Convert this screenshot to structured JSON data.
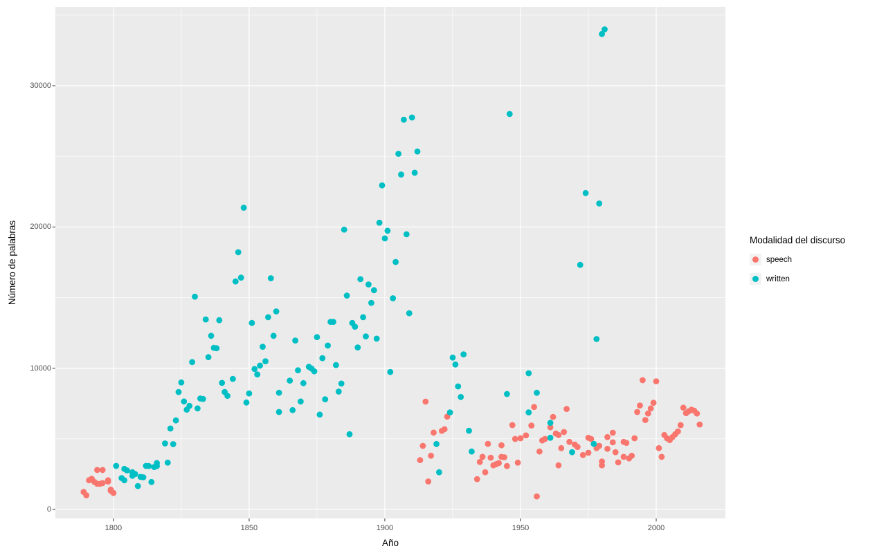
{
  "chart_data": {
    "type": "scatter",
    "title": "",
    "xlabel": "Año",
    "ylabel": "Número de palabras",
    "legend_title": "Modalidad del discurso",
    "legend_position": "right",
    "grid": true,
    "panel_bg": "#EBEBEB",
    "grid_color": "#FFFFFF",
    "tick_color": "#333333",
    "tick_label_color": "#4D4D4D",
    "xlim": [
      1778.6,
      2025.5
    ],
    "ylim": [
      -640,
      35580
    ],
    "x_ticks": [
      1800,
      1850,
      1900,
      1950,
      2000
    ],
    "x_tick_labels": [
      "1800",
      "1850",
      "1900",
      "1950",
      "2000"
    ],
    "x_minor_ticks": [
      1825,
      1875,
      1925,
      1975
    ],
    "y_ticks": [
      0,
      10000,
      20000,
      30000
    ],
    "y_tick_labels": [
      "0",
      "10000",
      "20000",
      "30000"
    ],
    "y_minor_ticks": [
      5000,
      15000,
      25000,
      35000
    ],
    "series": [
      {
        "name": "speech",
        "color": "#F8766D",
        "points": [
          [
            1789,
            1240
          ],
          [
            1790,
            1000
          ],
          [
            1791,
            2060
          ],
          [
            1792,
            2170
          ],
          [
            1793,
            1940
          ],
          [
            1794,
            2790
          ],
          [
            1794,
            1810
          ],
          [
            1795,
            1810
          ],
          [
            1796,
            2790
          ],
          [
            1796,
            1860
          ],
          [
            1798,
            1970
          ],
          [
            1798,
            2060
          ],
          [
            1799,
            1400
          ],
          [
            1799,
            1320
          ],
          [
            1800,
            1160
          ],
          [
            1913,
            3490
          ],
          [
            1914,
            4500
          ],
          [
            1915,
            7630
          ],
          [
            1916,
            1980
          ],
          [
            1917,
            3800
          ],
          [
            1918,
            5440
          ],
          [
            1921,
            5560
          ],
          [
            1922,
            5680
          ],
          [
            1923,
            6570
          ],
          [
            1934,
            2140
          ],
          [
            1935,
            3360
          ],
          [
            1936,
            3720
          ],
          [
            1937,
            2630
          ],
          [
            1938,
            4640
          ],
          [
            1939,
            3660
          ],
          [
            1940,
            3120
          ],
          [
            1941,
            3200
          ],
          [
            1942,
            3280
          ],
          [
            1943,
            3720
          ],
          [
            1943,
            4540
          ],
          [
            1944,
            3690
          ],
          [
            1945,
            3070
          ],
          [
            1947,
            5970
          ],
          [
            1948,
            4990
          ],
          [
            1949,
            3310
          ],
          [
            1950,
            5040
          ],
          [
            1952,
            5240
          ],
          [
            1954,
            5940
          ],
          [
            1955,
            7250
          ],
          [
            1956,
            920
          ],
          [
            1957,
            4100
          ],
          [
            1958,
            4880
          ],
          [
            1959,
            4990
          ],
          [
            1961,
            5810
          ],
          [
            1962,
            6550
          ],
          [
            1963,
            5370
          ],
          [
            1964,
            5270
          ],
          [
            1964,
            3120
          ],
          [
            1965,
            4340
          ],
          [
            1966,
            5480
          ],
          [
            1967,
            7110
          ],
          [
            1968,
            4780
          ],
          [
            1970,
            4590
          ],
          [
            1971,
            4420
          ],
          [
            1973,
            3850
          ],
          [
            1975,
            5070
          ],
          [
            1975,
            4010
          ],
          [
            1976,
            4990
          ],
          [
            1978,
            4340
          ],
          [
            1979,
            4500
          ],
          [
            1980,
            3390
          ],
          [
            1980,
            3120
          ],
          [
            1982,
            4290
          ],
          [
            1982,
            5120
          ],
          [
            1984,
            5430
          ],
          [
            1984,
            4750
          ],
          [
            1985,
            4050
          ],
          [
            1986,
            3330
          ],
          [
            1988,
            4780
          ],
          [
            1988,
            3720
          ],
          [
            1989,
            4710
          ],
          [
            1990,
            3610
          ],
          [
            1991,
            3800
          ],
          [
            1992,
            5040
          ],
          [
            1993,
            6900
          ],
          [
            1994,
            7360
          ],
          [
            1995,
            9150
          ],
          [
            1996,
            6330
          ],
          [
            1997,
            6790
          ],
          [
            1998,
            7150
          ],
          [
            1999,
            7550
          ],
          [
            2000,
            9070
          ],
          [
            2001,
            4340
          ],
          [
            2002,
            3720
          ],
          [
            2003,
            5270
          ],
          [
            2004,
            5030
          ],
          [
            2005,
            4910
          ],
          [
            2006,
            5120
          ],
          [
            2007,
            5320
          ],
          [
            2008,
            5520
          ],
          [
            2009,
            5970
          ],
          [
            2010,
            7200
          ],
          [
            2011,
            6820
          ],
          [
            2012,
            6950
          ],
          [
            2013,
            7060
          ],
          [
            2014,
            6990
          ],
          [
            2015,
            6790
          ],
          [
            2016,
            6010
          ]
        ]
      },
      {
        "name": "written",
        "color": "#00BFC4",
        "points": [
          [
            1801,
            3080
          ],
          [
            1803,
            2220
          ],
          [
            1804,
            2060
          ],
          [
            1804,
            2870
          ],
          [
            1805,
            2760
          ],
          [
            1807,
            2380
          ],
          [
            1807,
            2630
          ],
          [
            1808,
            2500
          ],
          [
            1809,
            1650
          ],
          [
            1810,
            2300
          ],
          [
            1811,
            2270
          ],
          [
            1812,
            3080
          ],
          [
            1813,
            3070
          ],
          [
            1814,
            1940
          ],
          [
            1815,
            3000
          ],
          [
            1816,
            3070
          ],
          [
            1816,
            3280
          ],
          [
            1819,
            4670
          ],
          [
            1820,
            3310
          ],
          [
            1821,
            5730
          ],
          [
            1822,
            4620
          ],
          [
            1823,
            6300
          ],
          [
            1824,
            8310
          ],
          [
            1825,
            8990
          ],
          [
            1826,
            7640
          ],
          [
            1827,
            7060
          ],
          [
            1828,
            7330
          ],
          [
            1829,
            10430
          ],
          [
            1830,
            15060
          ],
          [
            1831,
            7150
          ],
          [
            1832,
            7850
          ],
          [
            1833,
            7820
          ],
          [
            1834,
            13450
          ],
          [
            1835,
            10780
          ],
          [
            1836,
            12290
          ],
          [
            1837,
            11440
          ],
          [
            1838,
            11410
          ],
          [
            1839,
            13400
          ],
          [
            1840,
            8960
          ],
          [
            1841,
            8310
          ],
          [
            1842,
            8040
          ],
          [
            1844,
            9240
          ],
          [
            1845,
            16140
          ],
          [
            1846,
            18210
          ],
          [
            1847,
            16410
          ],
          [
            1848,
            21360
          ],
          [
            1849,
            7570
          ],
          [
            1850,
            8210
          ],
          [
            1851,
            13200
          ],
          [
            1852,
            9940
          ],
          [
            1853,
            9560
          ],
          [
            1854,
            10180
          ],
          [
            1855,
            11520
          ],
          [
            1856,
            10490
          ],
          [
            1857,
            13610
          ],
          [
            1858,
            16370
          ],
          [
            1859,
            12290
          ],
          [
            1860,
            14020
          ],
          [
            1861,
            8260
          ],
          [
            1861,
            6900
          ],
          [
            1865,
            9120
          ],
          [
            1866,
            7030
          ],
          [
            1867,
            11960
          ],
          [
            1868,
            9850
          ],
          [
            1869,
            7640
          ],
          [
            1870,
            8940
          ],
          [
            1872,
            10100
          ],
          [
            1873,
            9970
          ],
          [
            1874,
            9780
          ],
          [
            1875,
            12200
          ],
          [
            1876,
            6710
          ],
          [
            1877,
            10710
          ],
          [
            1878,
            7800
          ],
          [
            1879,
            11600
          ],
          [
            1880,
            13280
          ],
          [
            1881,
            13280
          ],
          [
            1882,
            10220
          ],
          [
            1883,
            8340
          ],
          [
            1884,
            8910
          ],
          [
            1885,
            19810
          ],
          [
            1886,
            15140
          ],
          [
            1887,
            5320
          ],
          [
            1888,
            13200
          ],
          [
            1889,
            12940
          ],
          [
            1890,
            11470
          ],
          [
            1891,
            16300
          ],
          [
            1892,
            13610
          ],
          [
            1893,
            12250
          ],
          [
            1894,
            15930
          ],
          [
            1895,
            14620
          ],
          [
            1896,
            15520
          ],
          [
            1897,
            12090
          ],
          [
            1898,
            20300
          ],
          [
            1899,
            22940
          ],
          [
            1900,
            19190
          ],
          [
            1901,
            19730
          ],
          [
            1902,
            9730
          ],
          [
            1903,
            14950
          ],
          [
            1904,
            17520
          ],
          [
            1905,
            25180
          ],
          [
            1906,
            23710
          ],
          [
            1907,
            27590
          ],
          [
            1908,
            19480
          ],
          [
            1909,
            13890
          ],
          [
            1910,
            27750
          ],
          [
            1911,
            23840
          ],
          [
            1912,
            25340
          ],
          [
            1919,
            4630
          ],
          [
            1920,
            2630
          ],
          [
            1924,
            6870
          ],
          [
            1925,
            10750
          ],
          [
            1926,
            10260
          ],
          [
            1927,
            8710
          ],
          [
            1928,
            7960
          ],
          [
            1929,
            10980
          ],
          [
            1931,
            5570
          ],
          [
            1932,
            4100
          ],
          [
            1945,
            8170
          ],
          [
            1946,
            28000
          ],
          [
            1953,
            9640
          ],
          [
            1953,
            6870
          ],
          [
            1956,
            8260
          ],
          [
            1961,
            6130
          ],
          [
            1961,
            5070
          ],
          [
            1969,
            4050
          ],
          [
            1972,
            17320
          ],
          [
            1974,
            22400
          ],
          [
            1977,
            4640
          ],
          [
            1978,
            12060
          ],
          [
            1979,
            21660
          ],
          [
            1980,
            33660
          ],
          [
            1981,
            33990
          ]
        ]
      }
    ]
  }
}
